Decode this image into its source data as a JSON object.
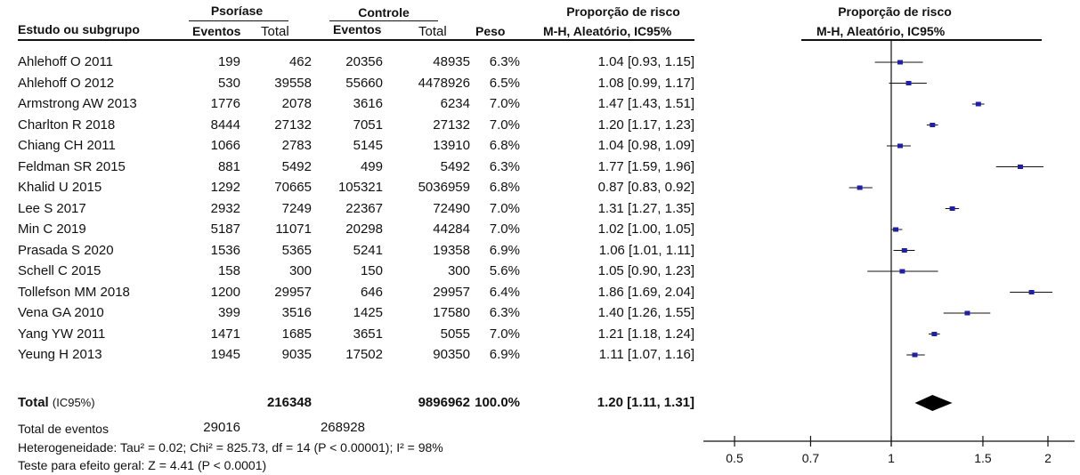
{
  "headers": {
    "group1": "Psoríase",
    "group2": "Controle",
    "study_col": "Estudo ou subgrupo",
    "events": "Eventos",
    "total": "Total",
    "weight": "Peso",
    "rr_title": "Proporção de risco",
    "rr_method": "M-H, Aleatório, IC95%",
    "plot_title": "Proporção de risco",
    "plot_method": "M-H, Aleatório, IC95%"
  },
  "studies": [
    {
      "name": "Ahlehoff O 2011",
      "e1": "199",
      "t1": "462",
      "e2": "20356",
      "t2": "48935",
      "weight": "6.3%",
      "ci_text": "1.04 [0.93, 1.15]"
    },
    {
      "name": "Ahlehoff O 2012",
      "e1": "530",
      "t1": "39558",
      "e2": "55660",
      "t2": "4478926",
      "weight": "6.5%",
      "ci_text": "1.08 [0.99, 1.17]"
    },
    {
      "name": "Armstrong AW 2013",
      "e1": "1776",
      "t1": "2078",
      "e2": "3616",
      "t2": "6234",
      "weight": "7.0%",
      "ci_text": "1.47 [1.43, 1.51]"
    },
    {
      "name": "Charlton R 2018",
      "e1": "8444",
      "t1": "27132",
      "e2": "7051",
      "t2": "27132",
      "weight": "7.0%",
      "ci_text": "1.20 [1.17, 1.23]"
    },
    {
      "name": "Chiang CH 2011",
      "e1": "1066",
      "t1": "2783",
      "e2": "5145",
      "t2": "13910",
      "weight": "6.8%",
      "ci_text": "1.04 [0.98, 1.09]"
    },
    {
      "name": "Feldman SR 2015",
      "e1": "881",
      "t1": "5492",
      "e2": "499",
      "t2": "5492",
      "weight": "6.3%",
      "ci_text": "1.77 [1.59, 1.96]"
    },
    {
      "name": "Khalid U 2015",
      "e1": "1292",
      "t1": "70665",
      "e2": "105321",
      "t2": "5036959",
      "weight": "6.8%",
      "ci_text": "0.87 [0.83, 0.92]"
    },
    {
      "name": "Lee S 2017",
      "e1": "2932",
      "t1": "7249",
      "e2": "22367",
      "t2": "72490",
      "weight": "7.0%",
      "ci_text": "1.31 [1.27, 1.35]"
    },
    {
      "name": "Min C 2019",
      "e1": "5187",
      "t1": "11071",
      "e2": "20298",
      "t2": "44284",
      "weight": "7.0%",
      "ci_text": "1.02 [1.00, 1.05]"
    },
    {
      "name": "Prasada S 2020",
      "e1": "1536",
      "t1": "5365",
      "e2": "5241",
      "t2": "19358",
      "weight": "6.9%",
      "ci_text": "1.06 [1.01, 1.11]"
    },
    {
      "name": "Schell C 2015",
      "e1": "158",
      "t1": "300",
      "e2": "150",
      "t2": "300",
      "weight": "5.6%",
      "ci_text": "1.05 [0.90, 1.23]"
    },
    {
      "name": "Tollefson MM 2018",
      "e1": "1200",
      "t1": "29957",
      "e2": "646",
      "t2": "29957",
      "weight": "6.4%",
      "ci_text": "1.86 [1.69, 2.04]"
    },
    {
      "name": "Vena GA 2010",
      "e1": "399",
      "t1": "3516",
      "e2": "1425",
      "t2": "17580",
      "weight": "6.3%",
      "ci_text": "1.40 [1.26, 1.55]"
    },
    {
      "name": "Yang YW 2011",
      "e1": "1471",
      "t1": "1685",
      "e2": "3651",
      "t2": "5055",
      "weight": "7.0%",
      "ci_text": "1.21 [1.18, 1.24]"
    },
    {
      "name": "Yeung H 2013",
      "e1": "1945",
      "t1": "9035",
      "e2": "17502",
      "t2": "90350",
      "weight": "6.9%",
      "ci_text": "1.11 [1.07, 1.16]"
    }
  ],
  "total": {
    "label": "Total",
    "label_suffix": "(IC95%)",
    "t1": "216348",
    "t2": "9896962",
    "weight": "100.0%",
    "ci_text": "1.20 [1.11, 1.31]"
  },
  "events_total": {
    "label": "Total de eventos",
    "e1": "29016",
    "e2": "268928"
  },
  "heterogeneity": "Heterogeneidade: Tau² = 0.02; Chi² = 825.73, df = 14 (P < 0.00001); I² = 98%",
  "overall_effect": "Teste para efeito geral:  Z = 4.41 (P < 0.0001)",
  "chart_data": {
    "type": "scatter",
    "title": "Proporção de risco",
    "subtitle": "M-H, Aleatório, IC95%",
    "x_scale": "log",
    "xlim": [
      0.43,
      2.25
    ],
    "xticks": [
      0.5,
      0.7,
      1,
      1.5,
      2
    ],
    "xtick_labels": [
      "0.5",
      "0.7",
      "1",
      "1.5",
      "2"
    ],
    "reference_line": 1,
    "marker_color": "#1f1fa8",
    "diamond_color": "#000000",
    "series": [
      {
        "points": [
          {
            "rr": 1.04,
            "lo": 0.93,
            "hi": 1.15
          },
          {
            "rr": 1.08,
            "lo": 0.99,
            "hi": 1.17
          },
          {
            "rr": 1.47,
            "lo": 1.43,
            "hi": 1.51
          },
          {
            "rr": 1.2,
            "lo": 1.17,
            "hi": 1.23
          },
          {
            "rr": 1.04,
            "lo": 0.98,
            "hi": 1.09
          },
          {
            "rr": 1.77,
            "lo": 1.59,
            "hi": 1.96
          },
          {
            "rr": 0.87,
            "lo": 0.83,
            "hi": 0.92
          },
          {
            "rr": 1.31,
            "lo": 1.27,
            "hi": 1.35
          },
          {
            "rr": 1.02,
            "lo": 1.0,
            "hi": 1.05
          },
          {
            "rr": 1.06,
            "lo": 1.01,
            "hi": 1.11
          },
          {
            "rr": 1.05,
            "lo": 0.9,
            "hi": 1.23
          },
          {
            "rr": 1.86,
            "lo": 1.69,
            "hi": 2.04
          },
          {
            "rr": 1.4,
            "lo": 1.26,
            "hi": 1.55
          },
          {
            "rr": 1.21,
            "lo": 1.18,
            "hi": 1.24
          },
          {
            "rr": 1.11,
            "lo": 1.07,
            "hi": 1.16
          }
        ]
      }
    ],
    "pooled": {
      "rr": 1.2,
      "lo": 1.11,
      "hi": 1.31
    }
  }
}
